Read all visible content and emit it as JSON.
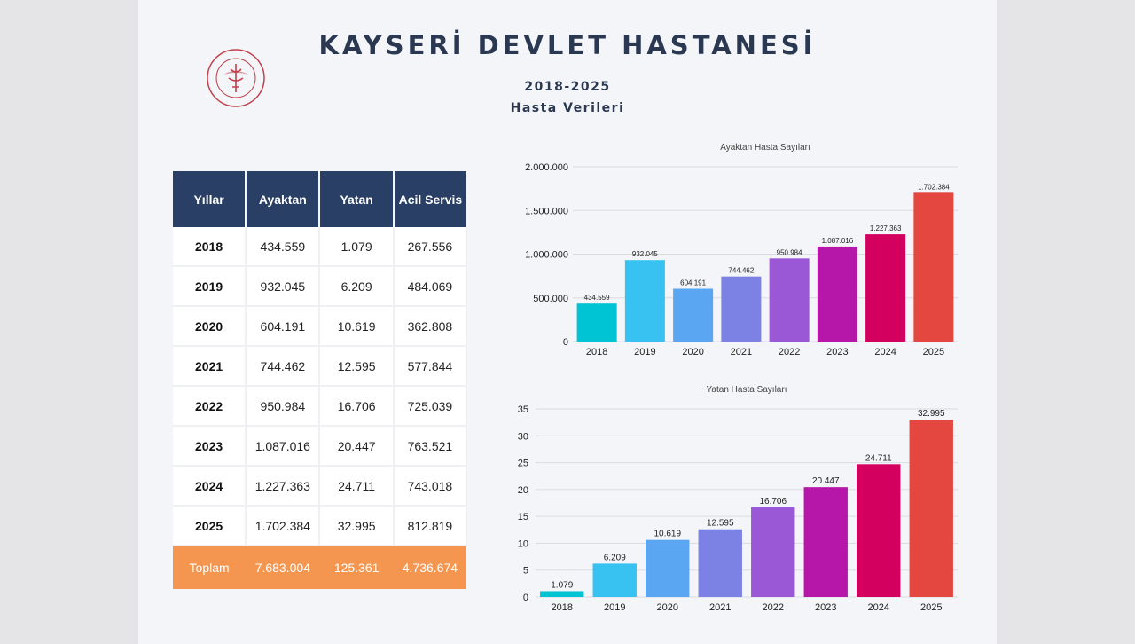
{
  "header": {
    "title": "KAYSERİ DEVLET HASTANESİ",
    "years_range": "2018-2025",
    "subtitle": "Hasta Verileri"
  },
  "table": {
    "headers": [
      "Yıllar",
      "Ayaktan",
      "Yatan",
      "Acil Servis"
    ],
    "rows": [
      [
        "2018",
        "434.559",
        "1.079",
        "267.556"
      ],
      [
        "2019",
        "932.045",
        "6.209",
        "484.069"
      ],
      [
        "2020",
        "604.191",
        "10.619",
        "362.808"
      ],
      [
        "2021",
        "744.462",
        "12.595",
        "577.844"
      ],
      [
        "2022",
        "950.984",
        "16.706",
        "725.039"
      ],
      [
        "2023",
        "1.087.016",
        "20.447",
        "763.521"
      ],
      [
        "2024",
        "1.227.363",
        "24.711",
        "743.018"
      ],
      [
        "2025",
        "1.702.384",
        "32.995",
        "812.819"
      ]
    ],
    "total": [
      "Toplam",
      "7.683.004",
      "125.361",
      "4.736.674"
    ]
  },
  "chart_data": [
    {
      "type": "bar",
      "title": "Ayaktan Hasta Sayıları",
      "categories": [
        "2018",
        "2019",
        "2020",
        "2021",
        "2022",
        "2023",
        "2024",
        "2025"
      ],
      "values": [
        434559,
        932045,
        604191,
        744462,
        950984,
        1087016,
        1227363,
        1702384
      ],
      "labels": [
        "434.559",
        "932.045",
        "604.191",
        "744.462",
        "950.984",
        "1.087.016",
        "1.227.363",
        "1.702.384"
      ],
      "yticks": [
        "0",
        "500.000",
        "1.000.000",
        "1.500.000",
        "2.000.000"
      ],
      "ylim": [
        0,
        2000000
      ],
      "colors": [
        "#00c3d4",
        "#38c2f2",
        "#5aa6f3",
        "#7b82e4",
        "#9a57d6",
        "#b617a9",
        "#d4005f",
        "#e3473f"
      ],
      "grid": true
    },
    {
      "type": "bar",
      "title": "Yatan Hasta Sayıları",
      "categories": [
        "2018",
        "2019",
        "2020",
        "2021",
        "2022",
        "2023",
        "2024",
        "2025"
      ],
      "values": [
        1.079,
        6.209,
        10.619,
        12.595,
        16.706,
        20.447,
        24.711,
        32.995
      ],
      "labels": [
        "1.079",
        "6.209",
        "10.619",
        "12.595",
        "16.706",
        "20.447",
        "24.711",
        "32.995"
      ],
      "yticks": [
        "0",
        "5",
        "10",
        "15",
        "20",
        "25",
        "30",
        "35"
      ],
      "ylim": [
        0,
        35
      ],
      "colors": [
        "#00c3d4",
        "#38c2f2",
        "#5aa6f3",
        "#7b82e4",
        "#9a57d6",
        "#b617a9",
        "#d4005f",
        "#e3473f"
      ],
      "grid": true
    }
  ]
}
